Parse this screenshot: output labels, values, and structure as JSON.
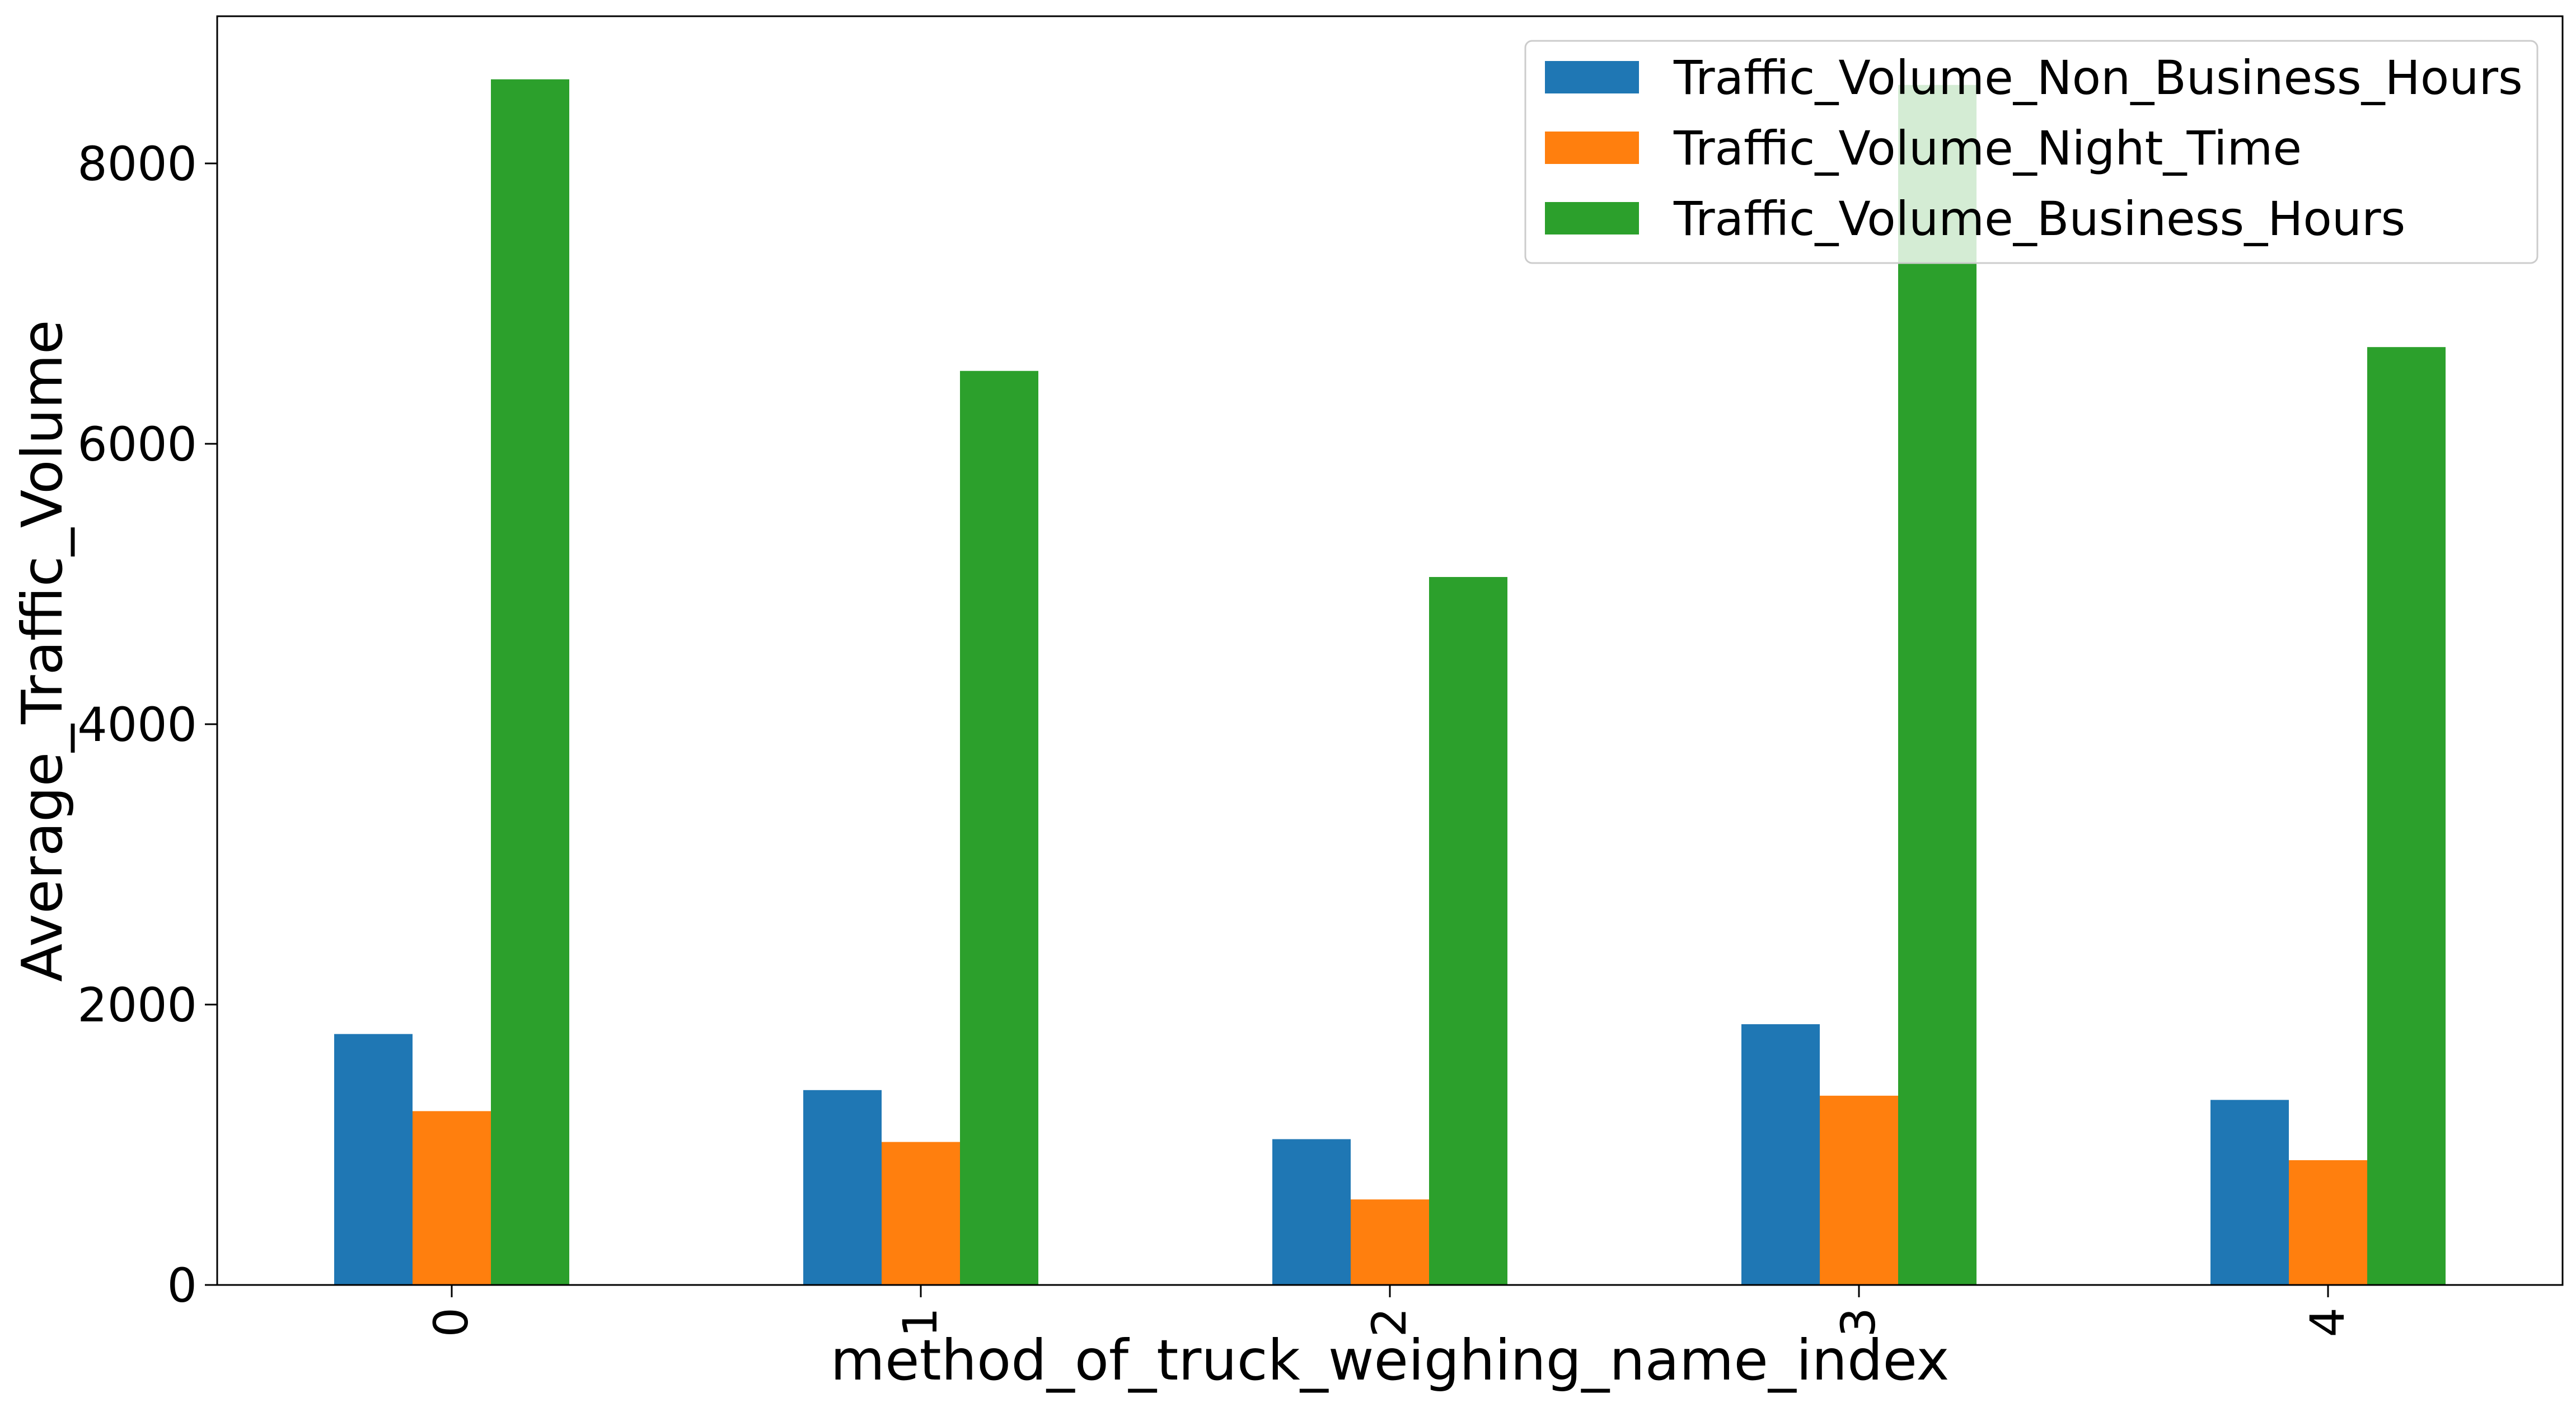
{
  "chart_data": {
    "type": "bar",
    "xlabel": "method_of_truck_weighing_name_index",
    "ylabel": "Average_Traffic_Volume",
    "categories": [
      "0",
      "1",
      "2",
      "3",
      "4"
    ],
    "ylim": [
      0,
      9050
    ],
    "yticks": [
      0,
      2000,
      4000,
      6000,
      8000
    ],
    "ytick_labels": [
      "0",
      "2000",
      "4000",
      "6000",
      "8000"
    ],
    "grid": false,
    "legend_position": "top-right",
    "series": [
      {
        "name": "Traffic_Volume_Non_Business_Hours",
        "color": "#1f77b4",
        "values": [
          1790,
          1390,
          1040,
          1860,
          1320
        ]
      },
      {
        "name": "Traffic_Volume_Night_Time",
        "color": "#ff7f0e",
        "values": [
          1240,
          1020,
          610,
          1350,
          890
        ]
      },
      {
        "name": "Traffic_Volume_Business_Hours",
        "color": "#2ca02c",
        "values": [
          8600,
          6520,
          5050,
          8560,
          6690
        ]
      }
    ]
  }
}
